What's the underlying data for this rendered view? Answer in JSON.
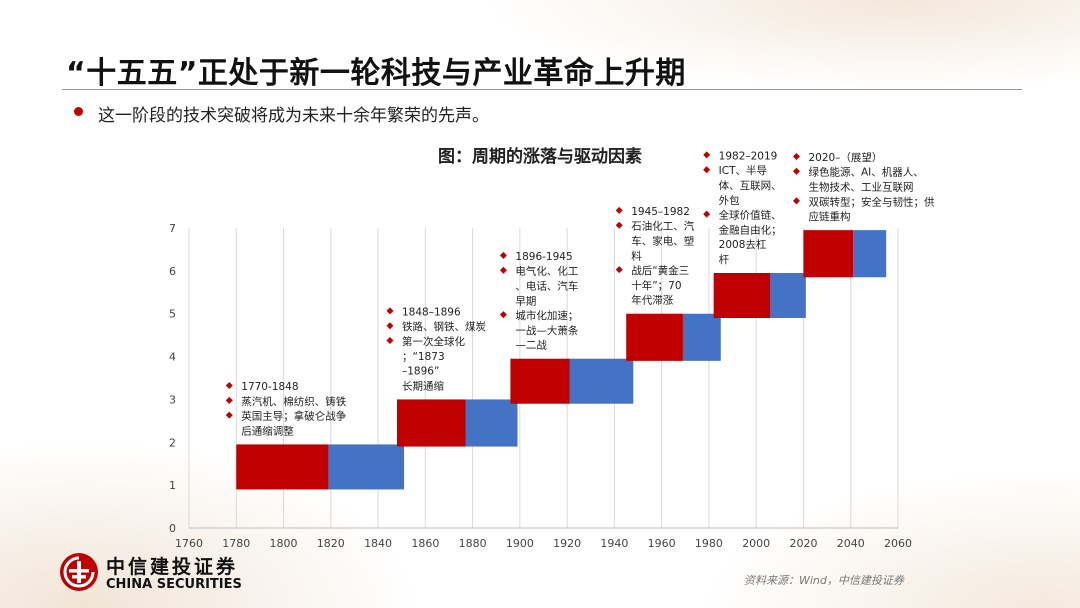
{
  "page": {
    "title": "“十五五”正处于新一轮科技与产业革命上升期",
    "bullet": "这一阶段的技术突破将成为未来十余年繁荣的先声。",
    "source": "资料来源：Wind，中信建投证券"
  },
  "logo": {
    "name_cn": "中信建投证券",
    "name_en": "CHINA SECURITIES"
  },
  "colors": {
    "upswing": "#c00000",
    "downswing": "#4472c4",
    "accent": "#c00000"
  },
  "chart_data": {
    "type": "bar",
    "title": "图：周期的涨落与驱动因素",
    "xlim": [
      1760,
      2060
    ],
    "ylim": [
      0,
      7
    ],
    "xticks": [
      1760,
      1780,
      1800,
      1820,
      1840,
      1860,
      1880,
      1900,
      1920,
      1940,
      1960,
      1980,
      2000,
      2020,
      2040,
      2060
    ],
    "yticks": [
      0,
      1,
      2,
      3,
      4,
      5,
      6,
      7
    ],
    "grid": "vertical",
    "legend": "none",
    "cycles": [
      {
        "up": [
          1780,
          1819
        ],
        "down": [
          1819,
          1851
        ],
        "y": [
          0.9,
          1.95
        ],
        "notes": [
          "1770-1848",
          "蒸汽机、棉纺织、铸铁",
          "英国主导；拿破仑战争后通缩调整"
        ]
      },
      {
        "up": [
          1848,
          1877
        ],
        "down": [
          1877,
          1899
        ],
        "y": [
          1.9,
          3.0
        ],
        "notes": [
          "1848–1896",
          "铁路、钢铁、煤炭",
          "第一次全球化；“1873–1896”长期通缩"
        ]
      },
      {
        "up": [
          1896,
          1921
        ],
        "down": [
          1921,
          1948
        ],
        "y": [
          2.9,
          3.95
        ],
        "notes": [
          "1896-1945",
          "电气化、化工、电话、汽车早期",
          "城市化加速；一战—大萧条—二战"
        ]
      },
      {
        "up": [
          1945,
          1969
        ],
        "down": [
          1969,
          1985
        ],
        "y": [
          3.9,
          5.0
        ],
        "notes": [
          "1945–1982",
          "石油化工、汽车、家电、塑料",
          "战后“黄金三十年”；70年代滞涨"
        ]
      },
      {
        "up": [
          1982,
          2006
        ],
        "down": [
          2006,
          2021
        ],
        "y": [
          4.9,
          5.95
        ],
        "notes": [
          "1982–2019",
          "ICT、半导体、互联网、外包",
          "全球价值链、金融自由化；2008去杠杆"
        ]
      },
      {
        "up": [
          2020,
          2041
        ],
        "down": [
          2041,
          2055
        ],
        "y": [
          5.85,
          6.95
        ],
        "notes": [
          "2020–（展望）",
          "绿色能源、AI、机器人、生物技术、工业互联网",
          "双碳转型；安全与韧性；供应链重构"
        ]
      }
    ]
  }
}
